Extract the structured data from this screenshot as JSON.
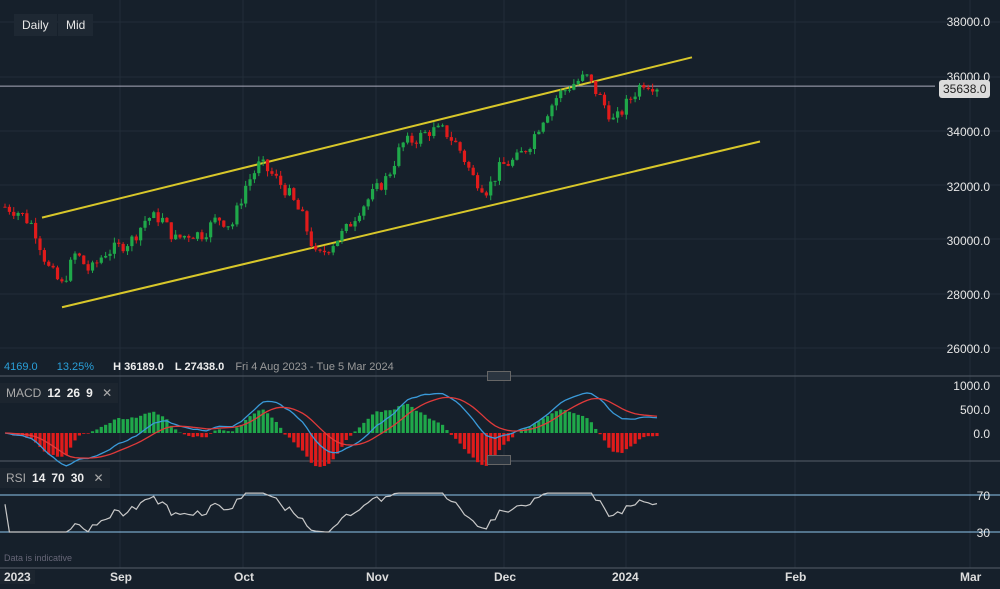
{
  "toolbar": {
    "daily": "Daily",
    "mid": "Mid"
  },
  "price_axis": {
    "labels": [
      "38000.0",
      "36000.0",
      "34000.0",
      "32000.0",
      "30000.0",
      "28000.0",
      "26000.0"
    ],
    "current": "35638.0"
  },
  "stats": {
    "change": "4169.0",
    "change_pct": "13.25%",
    "high": "H 36189.0",
    "low": "L 27438.0",
    "range": "Fri 4 Aug 2023 - Tue 5 Mar 2024"
  },
  "macd": {
    "label": "MACD",
    "p1": "12",
    "p2": "26",
    "p3": "9",
    "close": "✕",
    "axis": [
      "1000.0",
      "500.0",
      "0.0"
    ]
  },
  "rsi": {
    "label": "RSI",
    "p1": "14",
    "p2": "70",
    "p3": "30",
    "close": "✕",
    "axis": [
      "70",
      "30"
    ]
  },
  "disclaimer": "Data is indicative",
  "time_axis": [
    "2023",
    "Sep",
    "Oct",
    "Nov",
    "Dec",
    "2024",
    "Feb",
    "Mar"
  ],
  "colors": {
    "up": "#1fa84a",
    "down": "#e01b1b",
    "channel": "#d8c72a",
    "macd": "#3a9ad9",
    "signal": "#e03a3a"
  },
  "chart_data": {
    "type": "candlestick",
    "symbol_last": 35638,
    "close_path": [
      31200,
      31000,
      30500,
      29000,
      28300,
      29500,
      28800,
      29500,
      29700,
      30000,
      30800,
      30800,
      30000,
      30200,
      30200,
      30800,
      30500,
      32000,
      32800,
      32300,
      31700,
      30800,
      29300,
      29800,
      30300,
      31100,
      31700,
      32300,
      33500,
      33700,
      34000,
      34000,
      33400,
      32300,
      31800,
      32700,
      32900,
      33500,
      34500,
      35300,
      35700,
      36000,
      35200,
      34300,
      35100,
      35800,
      35638
    ],
    "channel_upper": [
      30800,
      36700
    ],
    "channel_lower": [
      27500,
      33600
    ],
    "ylim": [
      26000,
      38000
    ]
  }
}
